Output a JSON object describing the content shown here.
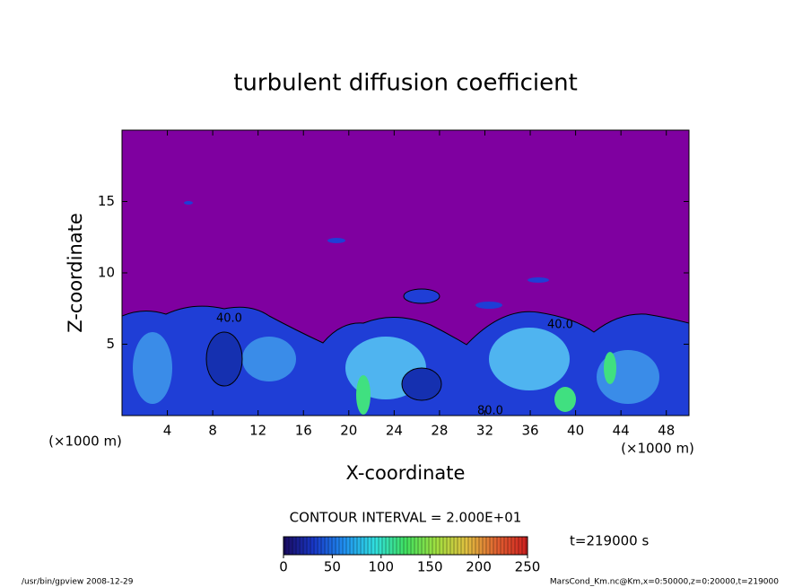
{
  "chart_data": {
    "type": "contour",
    "title": "turbulent diffusion coefficient",
    "xlabel": "X-coordinate",
    "ylabel": "Z-coordinate",
    "x_unit": "(×1000 m)",
    "y_unit": "(×1000 m)",
    "xlim": [
      0,
      50
    ],
    "xticks": [
      4,
      8,
      12,
      16,
      20,
      24,
      28,
      32,
      36,
      40,
      44,
      48
    ],
    "ylim": [
      0,
      20
    ],
    "yticks": [
      5,
      10,
      15
    ],
    "background_color": "#7f00a0",
    "contour_labels": [
      "40.0",
      "40.0",
      "80.0"
    ],
    "contour_interval": "CONTOUR INTERVAL = 2.000E+01",
    "time": "t=219000 s",
    "colorbar": {
      "lim": [
        0,
        250
      ],
      "ticks": [
        0,
        50,
        100,
        150,
        200,
        250
      ],
      "colors": [
        "#1a0a60",
        "#1838c8",
        "#2090f0",
        "#30e0e0",
        "#40e060",
        "#a0e040",
        "#e0c040",
        "#e06030",
        "#d02020"
      ]
    },
    "footer_left": "/usr/bin/gpview  2008-12-29",
    "footer_right": "MarsCond_Km.nc@Km,x=0:50000,z=0:20000,t=219000"
  }
}
